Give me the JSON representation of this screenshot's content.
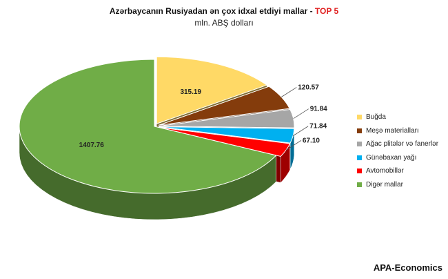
{
  "title": {
    "main": "Azərbaycanın Rusiyadan ən çox idxal etdiyi mallar - ",
    "highlight": "TOP 5",
    "subtitle": "mln. ABŞ dolları"
  },
  "brand": "APA-Economics",
  "chart_data": {
    "type": "pie",
    "style": "3d",
    "title": "Azərbaycanın Rusiyadan ən çox idxal etdiyi mallar - TOP 5",
    "subtitle": "mln. ABŞ dolları",
    "legend_position": "right",
    "slices": [
      {
        "name": "Buğda",
        "value": 315.19,
        "label": "315.19",
        "color": "#FFD966",
        "exploded": true
      },
      {
        "name": "Meşə materialları",
        "value": 120.57,
        "label": "120.57",
        "color": "#843C0C",
        "exploded": true
      },
      {
        "name": "Ağac plitələr və fanerlər",
        "value": 91.84,
        "label": "91.84",
        "color": "#A6A6A6",
        "exploded": true
      },
      {
        "name": "Günəbaxan yağı",
        "value": 71.84,
        "label": "71.84",
        "color": "#00B0F0",
        "exploded": true
      },
      {
        "name": "Avtomobillər",
        "value": 67.1,
        "label": "67.10",
        "color": "#FF0000",
        "exploded": true
      },
      {
        "name": "Digər mallar",
        "value": 1407.76,
        "label": "1407.76",
        "color": "#70AD47",
        "exploded": false
      }
    ]
  }
}
